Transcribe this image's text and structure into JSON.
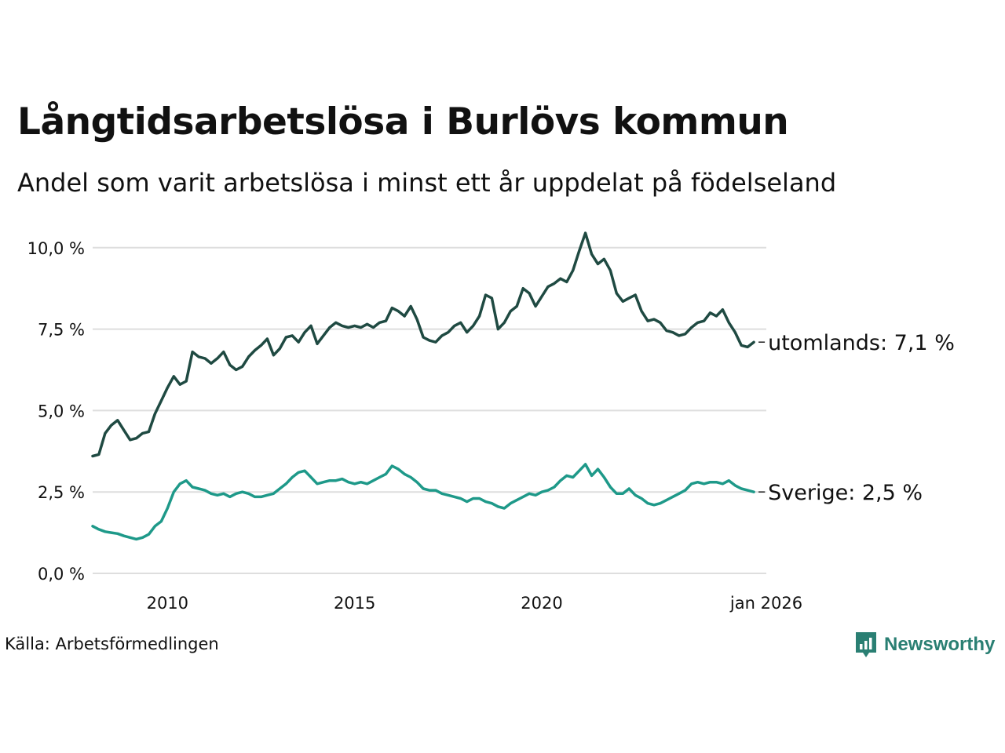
{
  "title": "Långtidsarbetslösa i Burlövs kommun",
  "subtitle": "Andel som varit arbetslösa i minst ett år uppdelat på födelseland",
  "source": "Källa: Arbetsförmedlingen",
  "brand": {
    "name": "Newsworthy",
    "icon": "newsworthy-logo-icon",
    "color": "#2a7f73"
  },
  "chart_data": {
    "type": "line",
    "ylim": [
      0,
      10.5
    ],
    "yticks": [
      {
        "value": 0,
        "label": "0,0 %"
      },
      {
        "value": 2.5,
        "label": "2,5 %"
      },
      {
        "value": 5,
        "label": "5,0 %"
      },
      {
        "value": 7.5,
        "label": "7,5 %"
      },
      {
        "value": 10,
        "label": "10,0 %"
      }
    ],
    "xlim": [
      "2008-01",
      "2026-01"
    ],
    "xticks": [
      {
        "value": "2010-01",
        "label": "2010"
      },
      {
        "value": "2015-01",
        "label": "2015"
      },
      {
        "value": "2020-01",
        "label": "2020"
      },
      {
        "value": "2026-01",
        "label": "jan 2026"
      }
    ],
    "grid": true,
    "series": [
      {
        "name": "utomlands",
        "end_label": "utomlands: 7,1 %",
        "color": "#1f4a42",
        "points": [
          [
            "2008-01",
            3.6
          ],
          [
            "2008-03",
            3.65
          ],
          [
            "2008-05",
            4.3
          ],
          [
            "2008-07",
            4.55
          ],
          [
            "2008-09",
            4.7
          ],
          [
            "2008-11",
            4.4
          ],
          [
            "2009-01",
            4.1
          ],
          [
            "2009-03",
            4.15
          ],
          [
            "2009-05",
            4.3
          ],
          [
            "2009-07",
            4.35
          ],
          [
            "2009-09",
            4.9
          ],
          [
            "2009-11",
            5.3
          ],
          [
            "2010-01",
            5.7
          ],
          [
            "2010-03",
            6.05
          ],
          [
            "2010-05",
            5.8
          ],
          [
            "2010-07",
            5.9
          ],
          [
            "2010-09",
            6.8
          ],
          [
            "2010-11",
            6.65
          ],
          [
            "2011-01",
            6.6
          ],
          [
            "2011-03",
            6.45
          ],
          [
            "2011-05",
            6.6
          ],
          [
            "2011-07",
            6.8
          ],
          [
            "2011-09",
            6.4
          ],
          [
            "2011-11",
            6.25
          ],
          [
            "2012-01",
            6.35
          ],
          [
            "2012-03",
            6.65
          ],
          [
            "2012-05",
            6.85
          ],
          [
            "2012-07",
            7.0
          ],
          [
            "2012-09",
            7.2
          ],
          [
            "2012-11",
            6.7
          ],
          [
            "2013-01",
            6.9
          ],
          [
            "2013-03",
            7.25
          ],
          [
            "2013-05",
            7.3
          ],
          [
            "2013-07",
            7.1
          ],
          [
            "2013-09",
            7.4
          ],
          [
            "2013-11",
            7.6
          ],
          [
            "2014-01",
            7.05
          ],
          [
            "2014-03",
            7.3
          ],
          [
            "2014-05",
            7.55
          ],
          [
            "2014-07",
            7.7
          ],
          [
            "2014-09",
            7.6
          ],
          [
            "2014-11",
            7.55
          ],
          [
            "2015-01",
            7.6
          ],
          [
            "2015-03",
            7.55
          ],
          [
            "2015-05",
            7.65
          ],
          [
            "2015-07",
            7.55
          ],
          [
            "2015-09",
            7.7
          ],
          [
            "2015-11",
            7.75
          ],
          [
            "2016-01",
            8.15
          ],
          [
            "2016-03",
            8.05
          ],
          [
            "2016-05",
            7.9
          ],
          [
            "2016-07",
            8.2
          ],
          [
            "2016-09",
            7.8
          ],
          [
            "2016-11",
            7.25
          ],
          [
            "2017-01",
            7.15
          ],
          [
            "2017-03",
            7.1
          ],
          [
            "2017-05",
            7.3
          ],
          [
            "2017-07",
            7.4
          ],
          [
            "2017-09",
            7.6
          ],
          [
            "2017-11",
            7.7
          ],
          [
            "2018-01",
            7.4
          ],
          [
            "2018-03",
            7.6
          ],
          [
            "2018-05",
            7.9
          ],
          [
            "2018-07",
            8.55
          ],
          [
            "2018-09",
            8.45
          ],
          [
            "2018-11",
            7.5
          ],
          [
            "2019-01",
            7.7
          ],
          [
            "2019-03",
            8.05
          ],
          [
            "2019-05",
            8.2
          ],
          [
            "2019-07",
            8.75
          ],
          [
            "2019-09",
            8.6
          ],
          [
            "2019-11",
            8.2
          ],
          [
            "2020-01",
            8.5
          ],
          [
            "2020-03",
            8.8
          ],
          [
            "2020-05",
            8.9
          ],
          [
            "2020-07",
            9.05
          ],
          [
            "2020-09",
            8.95
          ],
          [
            "2020-11",
            9.3
          ],
          [
            "2021-01",
            9.9
          ],
          [
            "2021-03",
            10.45
          ],
          [
            "2021-05",
            9.8
          ],
          [
            "2021-07",
            9.5
          ],
          [
            "2021-09",
            9.65
          ],
          [
            "2021-11",
            9.3
          ],
          [
            "2022-01",
            8.6
          ],
          [
            "2022-03",
            8.35
          ],
          [
            "2022-05",
            8.45
          ],
          [
            "2022-07",
            8.55
          ],
          [
            "2022-09",
            8.05
          ],
          [
            "2022-11",
            7.75
          ],
          [
            "2023-01",
            7.8
          ],
          [
            "2023-03",
            7.7
          ],
          [
            "2023-05",
            7.45
          ],
          [
            "2023-07",
            7.4
          ],
          [
            "2023-09",
            7.3
          ],
          [
            "2023-11",
            7.35
          ],
          [
            "2024-01",
            7.55
          ],
          [
            "2024-03",
            7.7
          ],
          [
            "2024-05",
            7.75
          ],
          [
            "2024-07",
            8.0
          ],
          [
            "2024-09",
            7.9
          ],
          [
            "2024-11",
            8.1
          ],
          [
            "2025-01",
            7.7
          ],
          [
            "2025-03",
            7.4
          ],
          [
            "2025-05",
            7.0
          ],
          [
            "2025-07",
            6.95
          ],
          [
            "2025-09",
            7.1
          ]
        ]
      },
      {
        "name": "Sverige",
        "end_label": "Sverige: 2,5 %",
        "color": "#1e9989",
        "points": [
          [
            "2008-01",
            1.45
          ],
          [
            "2008-03",
            1.35
          ],
          [
            "2008-05",
            1.28
          ],
          [
            "2008-07",
            1.25
          ],
          [
            "2008-09",
            1.22
          ],
          [
            "2008-11",
            1.15
          ],
          [
            "2009-01",
            1.1
          ],
          [
            "2009-03",
            1.05
          ],
          [
            "2009-05",
            1.1
          ],
          [
            "2009-07",
            1.2
          ],
          [
            "2009-09",
            1.45
          ],
          [
            "2009-11",
            1.6
          ],
          [
            "2010-01",
            2.0
          ],
          [
            "2010-03",
            2.5
          ],
          [
            "2010-05",
            2.75
          ],
          [
            "2010-07",
            2.85
          ],
          [
            "2010-09",
            2.65
          ],
          [
            "2010-11",
            2.6
          ],
          [
            "2011-01",
            2.55
          ],
          [
            "2011-03",
            2.45
          ],
          [
            "2011-05",
            2.4
          ],
          [
            "2011-07",
            2.45
          ],
          [
            "2011-09",
            2.35
          ],
          [
            "2011-11",
            2.45
          ],
          [
            "2012-01",
            2.5
          ],
          [
            "2012-03",
            2.45
          ],
          [
            "2012-05",
            2.35
          ],
          [
            "2012-07",
            2.35
          ],
          [
            "2012-09",
            2.4
          ],
          [
            "2012-11",
            2.45
          ],
          [
            "2013-01",
            2.6
          ],
          [
            "2013-03",
            2.75
          ],
          [
            "2013-05",
            2.95
          ],
          [
            "2013-07",
            3.1
          ],
          [
            "2013-09",
            3.15
          ],
          [
            "2013-11",
            2.95
          ],
          [
            "2014-01",
            2.75
          ],
          [
            "2014-03",
            2.8
          ],
          [
            "2014-05",
            2.85
          ],
          [
            "2014-07",
            2.85
          ],
          [
            "2014-09",
            2.9
          ],
          [
            "2014-11",
            2.8
          ],
          [
            "2015-01",
            2.75
          ],
          [
            "2015-03",
            2.8
          ],
          [
            "2015-05",
            2.75
          ],
          [
            "2015-07",
            2.85
          ],
          [
            "2015-09",
            2.95
          ],
          [
            "2015-11",
            3.05
          ],
          [
            "2016-01",
            3.3
          ],
          [
            "2016-03",
            3.2
          ],
          [
            "2016-05",
            3.05
          ],
          [
            "2016-07",
            2.95
          ],
          [
            "2016-09",
            2.8
          ],
          [
            "2016-11",
            2.6
          ],
          [
            "2017-01",
            2.55
          ],
          [
            "2017-03",
            2.55
          ],
          [
            "2017-05",
            2.45
          ],
          [
            "2017-07",
            2.4
          ],
          [
            "2017-09",
            2.35
          ],
          [
            "2017-11",
            2.3
          ],
          [
            "2018-01",
            2.2
          ],
          [
            "2018-03",
            2.3
          ],
          [
            "2018-05",
            2.3
          ],
          [
            "2018-07",
            2.2
          ],
          [
            "2018-09",
            2.15
          ],
          [
            "2018-11",
            2.05
          ],
          [
            "2019-01",
            2.0
          ],
          [
            "2019-03",
            2.15
          ],
          [
            "2019-05",
            2.25
          ],
          [
            "2019-07",
            2.35
          ],
          [
            "2019-09",
            2.45
          ],
          [
            "2019-11",
            2.4
          ],
          [
            "2020-01",
            2.5
          ],
          [
            "2020-03",
            2.55
          ],
          [
            "2020-05",
            2.65
          ],
          [
            "2020-07",
            2.85
          ],
          [
            "2020-09",
            3.0
          ],
          [
            "2020-11",
            2.95
          ],
          [
            "2021-01",
            3.15
          ],
          [
            "2021-03",
            3.35
          ],
          [
            "2021-05",
            3.0
          ],
          [
            "2021-07",
            3.2
          ],
          [
            "2021-09",
            2.95
          ],
          [
            "2021-11",
            2.65
          ],
          [
            "2022-01",
            2.45
          ],
          [
            "2022-03",
            2.45
          ],
          [
            "2022-05",
            2.6
          ],
          [
            "2022-07",
            2.4
          ],
          [
            "2022-09",
            2.3
          ],
          [
            "2022-11",
            2.15
          ],
          [
            "2023-01",
            2.1
          ],
          [
            "2023-03",
            2.15
          ],
          [
            "2023-05",
            2.25
          ],
          [
            "2023-07",
            2.35
          ],
          [
            "2023-09",
            2.45
          ],
          [
            "2023-11",
            2.55
          ],
          [
            "2024-01",
            2.75
          ],
          [
            "2024-03",
            2.8
          ],
          [
            "2024-05",
            2.75
          ],
          [
            "2024-07",
            2.8
          ],
          [
            "2024-09",
            2.8
          ],
          [
            "2024-11",
            2.75
          ],
          [
            "2025-01",
            2.85
          ],
          [
            "2025-03",
            2.7
          ],
          [
            "2025-05",
            2.6
          ],
          [
            "2025-07",
            2.55
          ],
          [
            "2025-09",
            2.5
          ]
        ]
      }
    ]
  }
}
